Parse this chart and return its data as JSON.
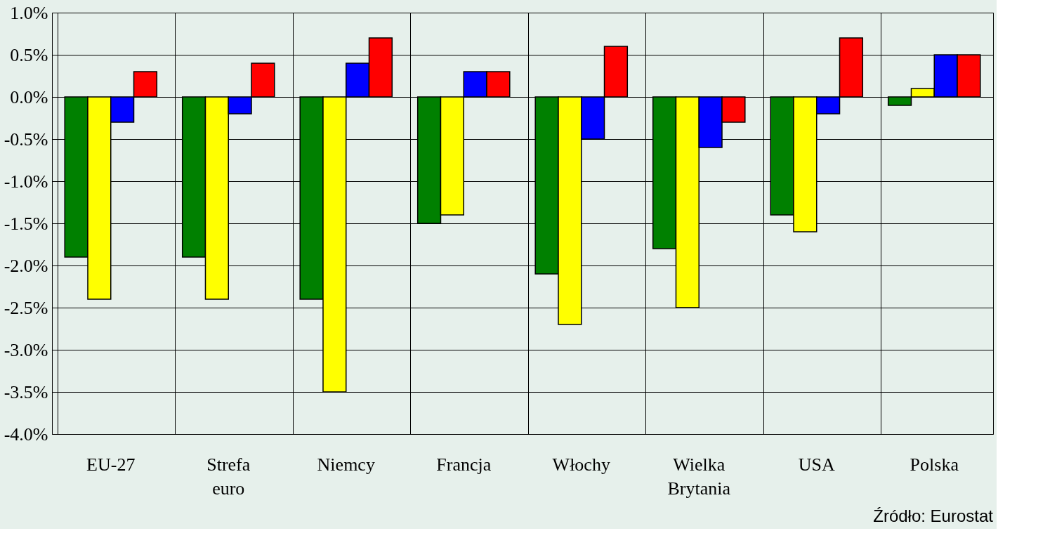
{
  "chart_data": {
    "type": "bar",
    "categories": [
      "EU-27",
      "Strefa euro",
      "Niemcy",
      "Francja",
      "Włochy",
      "Wielka Brytania",
      "USA",
      "Polska"
    ],
    "series": [
      {
        "color": "#008000",
        "values": [
          -1.9,
          -1.9,
          -2.4,
          -1.5,
          -2.1,
          -1.8,
          -1.4,
          -0.1
        ]
      },
      {
        "color": "#ffff00",
        "values": [
          -2.4,
          -2.4,
          -3.5,
          -1.4,
          -2.7,
          -2.5,
          -1.6,
          0.1
        ]
      },
      {
        "color": "#0000ff",
        "values": [
          -0.3,
          -0.2,
          0.4,
          0.3,
          -0.5,
          -0.6,
          -0.2,
          0.5
        ]
      },
      {
        "color": "#ff0000",
        "values": [
          0.3,
          0.4,
          0.7,
          0.3,
          0.6,
          -0.3,
          0.7,
          0.5
        ]
      }
    ],
    "ylim": [
      -4.0,
      1.0
    ],
    "yticks": [
      {
        "value": -4.0,
        "label": "-4.0%"
      },
      {
        "value": -3.5,
        "label": "-3.5%"
      },
      {
        "value": -3.0,
        "label": "-3.0%"
      },
      {
        "value": -2.5,
        "label": "-2.5%"
      },
      {
        "value": -2.0,
        "label": "-2.0%"
      },
      {
        "value": -1.5,
        "label": "-1.5%"
      },
      {
        "value": -1.0,
        "label": "-1.0%"
      },
      {
        "value": -0.5,
        "label": "-0.5%"
      },
      {
        "value": 0.0,
        "label": "0.0%"
      },
      {
        "value": 0.5,
        "label": "0.5%"
      },
      {
        "value": 1.0,
        "label": "1.0%"
      }
    ],
    "grid": true,
    "legend": false,
    "annotations": [
      "Źródło: Eurostat"
    ]
  }
}
